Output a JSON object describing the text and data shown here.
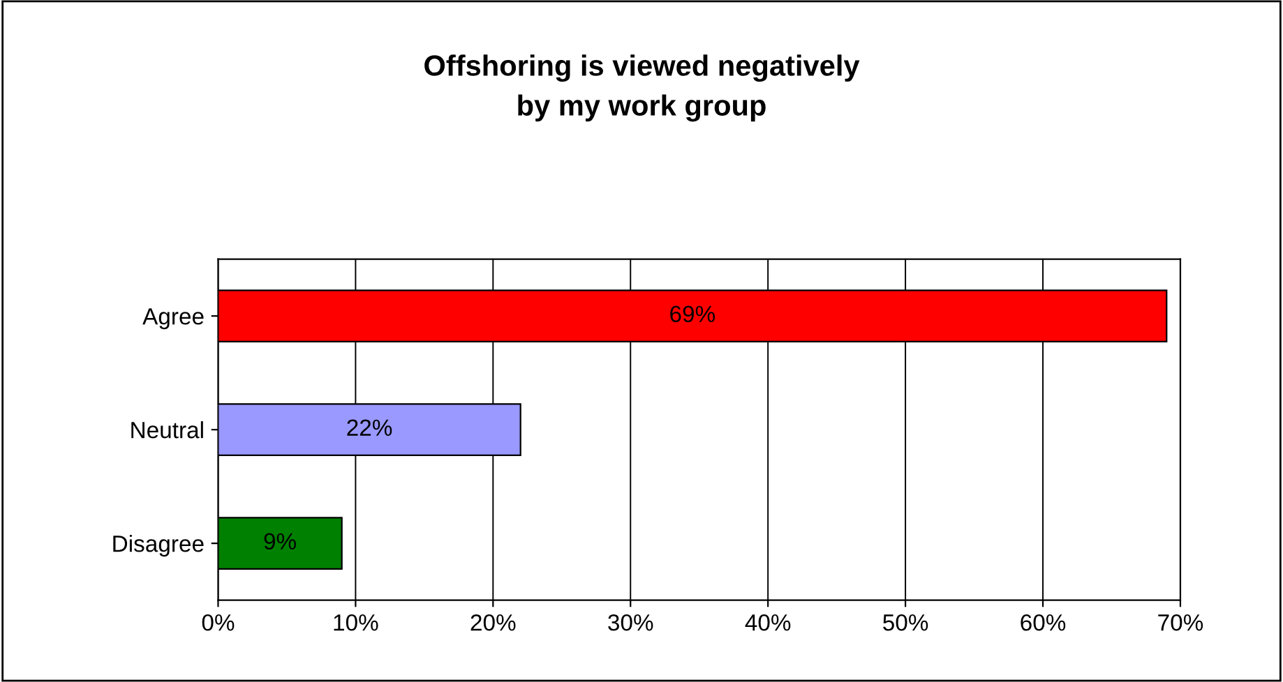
{
  "chart_data": {
    "type": "bar",
    "orientation": "horizontal",
    "title": "Offshoring is viewed negatively\nby my work group",
    "categories": [
      "Agree",
      "Neutral",
      "Disagree"
    ],
    "values": [
      69,
      22,
      9
    ],
    "colors": [
      "#ff0000",
      "#9999ff",
      "#008000"
    ],
    "value_labels": [
      "69%",
      "22%",
      "9%"
    ],
    "xlim": [
      0,
      70
    ],
    "xticks": [
      {
        "value": 0,
        "label": "0%"
      },
      {
        "value": 10,
        "label": "10%"
      },
      {
        "value": 20,
        "label": "20%"
      },
      {
        "value": 30,
        "label": "30%"
      },
      {
        "value": 40,
        "label": "40%"
      },
      {
        "value": 50,
        "label": "50%"
      },
      {
        "value": 60,
        "label": "60%"
      },
      {
        "value": 70,
        "label": "70%"
      }
    ],
    "grid": "x"
  }
}
